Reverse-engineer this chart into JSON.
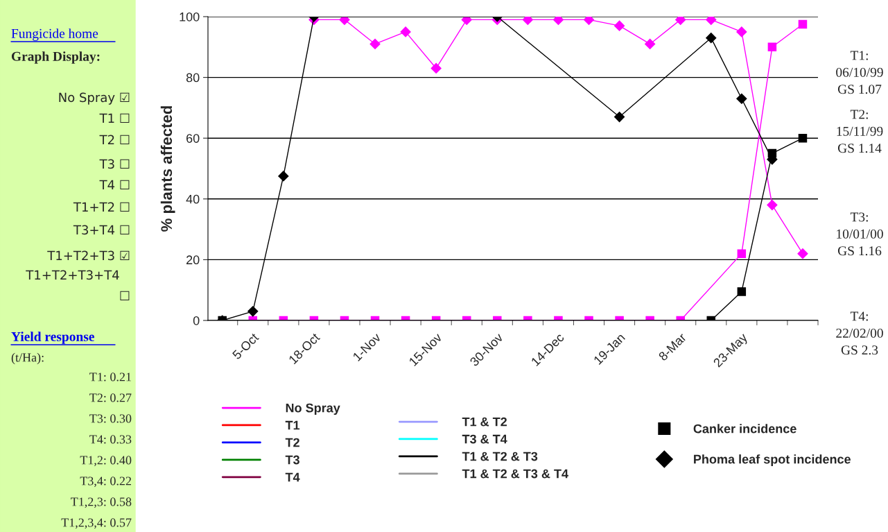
{
  "chart_data": {
    "type": "line",
    "ylabel": "% plants affected",
    "categories": [
      null,
      "5-Oct",
      null,
      "18-Oct",
      null,
      "1-Nov",
      null,
      "15-Nov",
      null,
      "30-Nov",
      null,
      "14-Dec",
      null,
      "19-Jan",
      null,
      "8-Mar",
      null,
      "23-May",
      null,
      null
    ],
    "ylim": [
      0,
      100
    ],
    "yticks": [
      0,
      20,
      40,
      60,
      80,
      100
    ],
    "grid": "y",
    "legend": "bottom",
    "series": [
      {
        "name": "No Spray",
        "color": "#ff00ff",
        "marker": "square",
        "values": [
          null,
          0,
          0,
          0,
          0,
          0,
          0,
          0,
          0,
          0,
          0,
          0,
          0,
          0,
          0,
          0,
          null,
          22,
          90,
          97.5
        ]
      },
      {
        "color": "#ff00ff",
        "marker": "diamond",
        "values": [
          null,
          null,
          null,
          99,
          99,
          91,
          95,
          83,
          99,
          99,
          99,
          99,
          99,
          97,
          91,
          99,
          99,
          95,
          38,
          22
        ]
      },
      {
        "name": "T1",
        "color": "#ff0000",
        "values": [
          null,
          null,
          null,
          null,
          null,
          null,
          null,
          null,
          null,
          null,
          null,
          null,
          null,
          null,
          null,
          null,
          null,
          null,
          null,
          null
        ]
      },
      {
        "name": "T2",
        "color": "#0000ff",
        "values": [
          null,
          null,
          null,
          null,
          null,
          null,
          null,
          null,
          null,
          null,
          null,
          null,
          null,
          null,
          null,
          null,
          null,
          null,
          null,
          null
        ]
      },
      {
        "name": "T3",
        "color": "#008000",
        "values": [
          null,
          null,
          null,
          null,
          null,
          null,
          null,
          null,
          null,
          null,
          null,
          null,
          null,
          null,
          null,
          null,
          null,
          null,
          null,
          null
        ]
      },
      {
        "name": "T4",
        "color": "#800040",
        "values": [
          null,
          null,
          null,
          null,
          null,
          null,
          null,
          null,
          null,
          null,
          null,
          null,
          null,
          null,
          null,
          null,
          null,
          null,
          null,
          null
        ]
      },
      {
        "name": "T1 & T2",
        "color": "#9999ff",
        "values": [
          null,
          null,
          null,
          null,
          null,
          null,
          null,
          null,
          null,
          null,
          null,
          null,
          null,
          null,
          null,
          null,
          null,
          null,
          null,
          null
        ]
      },
      {
        "name": "T3 & T4",
        "color": "#00ffff",
        "values": [
          null,
          null,
          null,
          null,
          null,
          null,
          null,
          null,
          null,
          null,
          null,
          null,
          null,
          null,
          null,
          null,
          null,
          null,
          null,
          null
        ]
      },
      {
        "name": "T1 & T2 & T3",
        "color": "#000000",
        "marker": "square",
        "values": [
          0,
          null,
          null,
          null,
          null,
          null,
          null,
          null,
          null,
          null,
          null,
          null,
          null,
          null,
          null,
          null,
          0,
          9.5,
          55,
          60
        ]
      },
      {
        "color": "#000000",
        "marker": "diamond",
        "values": [
          0,
          3,
          47.5,
          100,
          null,
          null,
          null,
          null,
          null,
          100,
          null,
          null,
          null,
          67,
          null,
          null,
          93,
          73,
          53,
          null
        ]
      },
      {
        "name": "T1 & T2 & T3 & T4",
        "color": "#999999",
        "values": [
          null,
          null,
          null,
          null,
          null,
          null,
          null,
          null,
          null,
          null,
          null,
          null,
          null,
          null,
          null,
          null,
          null,
          null,
          null,
          null
        ]
      },
      {
        "name": "Canker incidence",
        "type": "scatter",
        "color": "#000000",
        "marker": "square",
        "values": [
          null,
          null,
          null,
          null,
          null,
          null,
          null,
          null,
          null,
          null,
          null,
          null,
          null,
          null,
          null,
          null,
          null,
          null,
          null,
          null
        ]
      },
      {
        "name": "Phoma leaf spot incidence",
        "type": "scatter",
        "color": "#000000",
        "marker": "diamond",
        "values": [
          null,
          null,
          null,
          null,
          null,
          null,
          null,
          null,
          null,
          null,
          null,
          null,
          null,
          null,
          null,
          null,
          null,
          null,
          null,
          null
        ]
      }
    ],
    "annotations": [
      "Fungicide home",
      "Graph Display:",
      "No Spray ☑",
      "T1 ☐",
      "T2 ☐",
      "T3 ☐",
      "T4 ☐",
      "T1+T2 ☐",
      "T3+T4 ☐",
      "T1+T2+T3 ☑",
      "T1+T2+T3+T4",
      "☐",
      "Yield response",
      "(t/Ha):",
      "T1: 0.21",
      "T2: 0.27",
      "T3: 0.30",
      "T4: 0.33",
      "T1,2: 0.40",
      "T3,4: 0.22",
      "T1,2,3: 0.58",
      "T1,2,3,4: 0.57",
      "T1:\n06/10/99\nGS 1.07",
      "T2:\n15/11/99\nGS 1.14",
      "T3:\n10/01/00\nGS 1.16",
      "T4:\n22/02/00\nGS 2.3"
    ]
  }
}
